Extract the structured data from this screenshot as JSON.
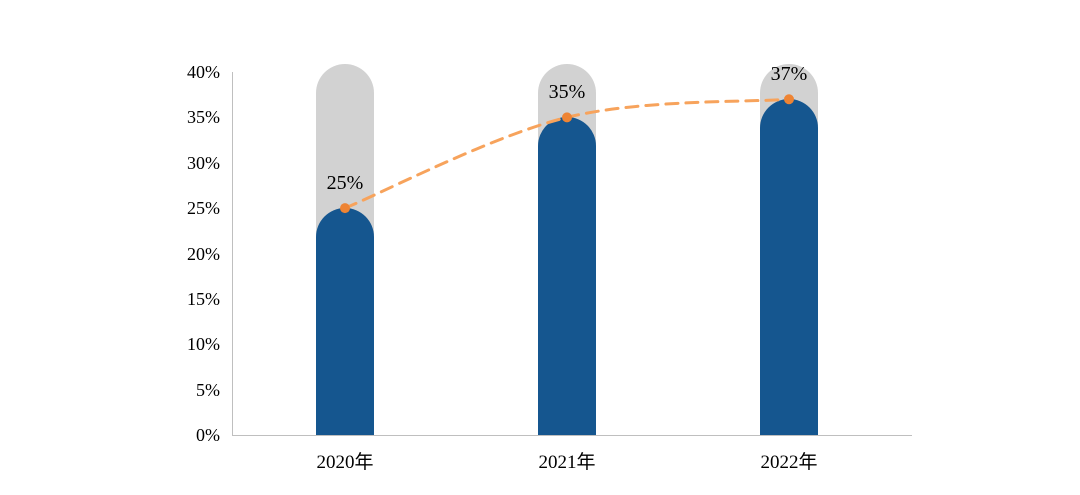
{
  "chart_data": {
    "type": "bar",
    "title": "",
    "categories": [
      "2020年",
      "2021年",
      "2022年"
    ],
    "values": [
      25,
      35,
      37
    ],
    "data_labels": [
      "25%",
      "35%",
      "37%"
    ],
    "line_series": {
      "name": "trend-line",
      "values": [
        25,
        35,
        37
      ]
    },
    "track_max": 40,
    "ylim": [
      0,
      40
    ],
    "ytick_step": 5,
    "ytick_labels": [
      "0%",
      "5%",
      "10%",
      "15%",
      "20%",
      "25%",
      "30%",
      "35%",
      "40%"
    ],
    "xlabel": "",
    "ylabel": "",
    "grid": false,
    "legend": "none",
    "colors": {
      "bar": "#15568F",
      "track": "#D2D2D2",
      "trend_line": "#F7A35C",
      "marker": "#EE8434",
      "axis": "#BFBFBF",
      "label_text": "#000000"
    }
  }
}
